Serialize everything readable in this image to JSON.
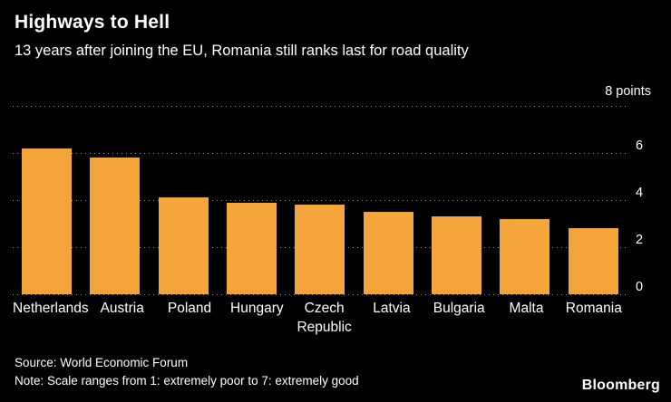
{
  "chart_data": {
    "type": "bar",
    "title": "Highways to Hell",
    "subtitle": "13 years after joining the EU, Romania still ranks last for road quality",
    "unit_label": "8 points",
    "categories": [
      "Netherlands",
      "Austria",
      "Poland",
      "Hungary",
      "Czech Republic",
      "Latvia",
      "Bulgaria",
      "Malta",
      "Romania"
    ],
    "values": [
      6.2,
      5.8,
      4.1,
      3.9,
      3.8,
      3.5,
      3.3,
      3.2,
      2.8
    ],
    "xlabel": "",
    "ylabel": "points",
    "ylim": [
      0,
      8
    ],
    "yticks": [
      0,
      2,
      4,
      6,
      8
    ],
    "grid": true,
    "legend": false,
    "bar_color": "#f3a43b",
    "background_color": "#000000",
    "text_color": "#ffffff"
  },
  "footer": {
    "source": "Source: World Economic Forum",
    "note": "Note: Scale ranges from 1: extremely poor to 7: extremely good",
    "logo": "Bloomberg"
  }
}
